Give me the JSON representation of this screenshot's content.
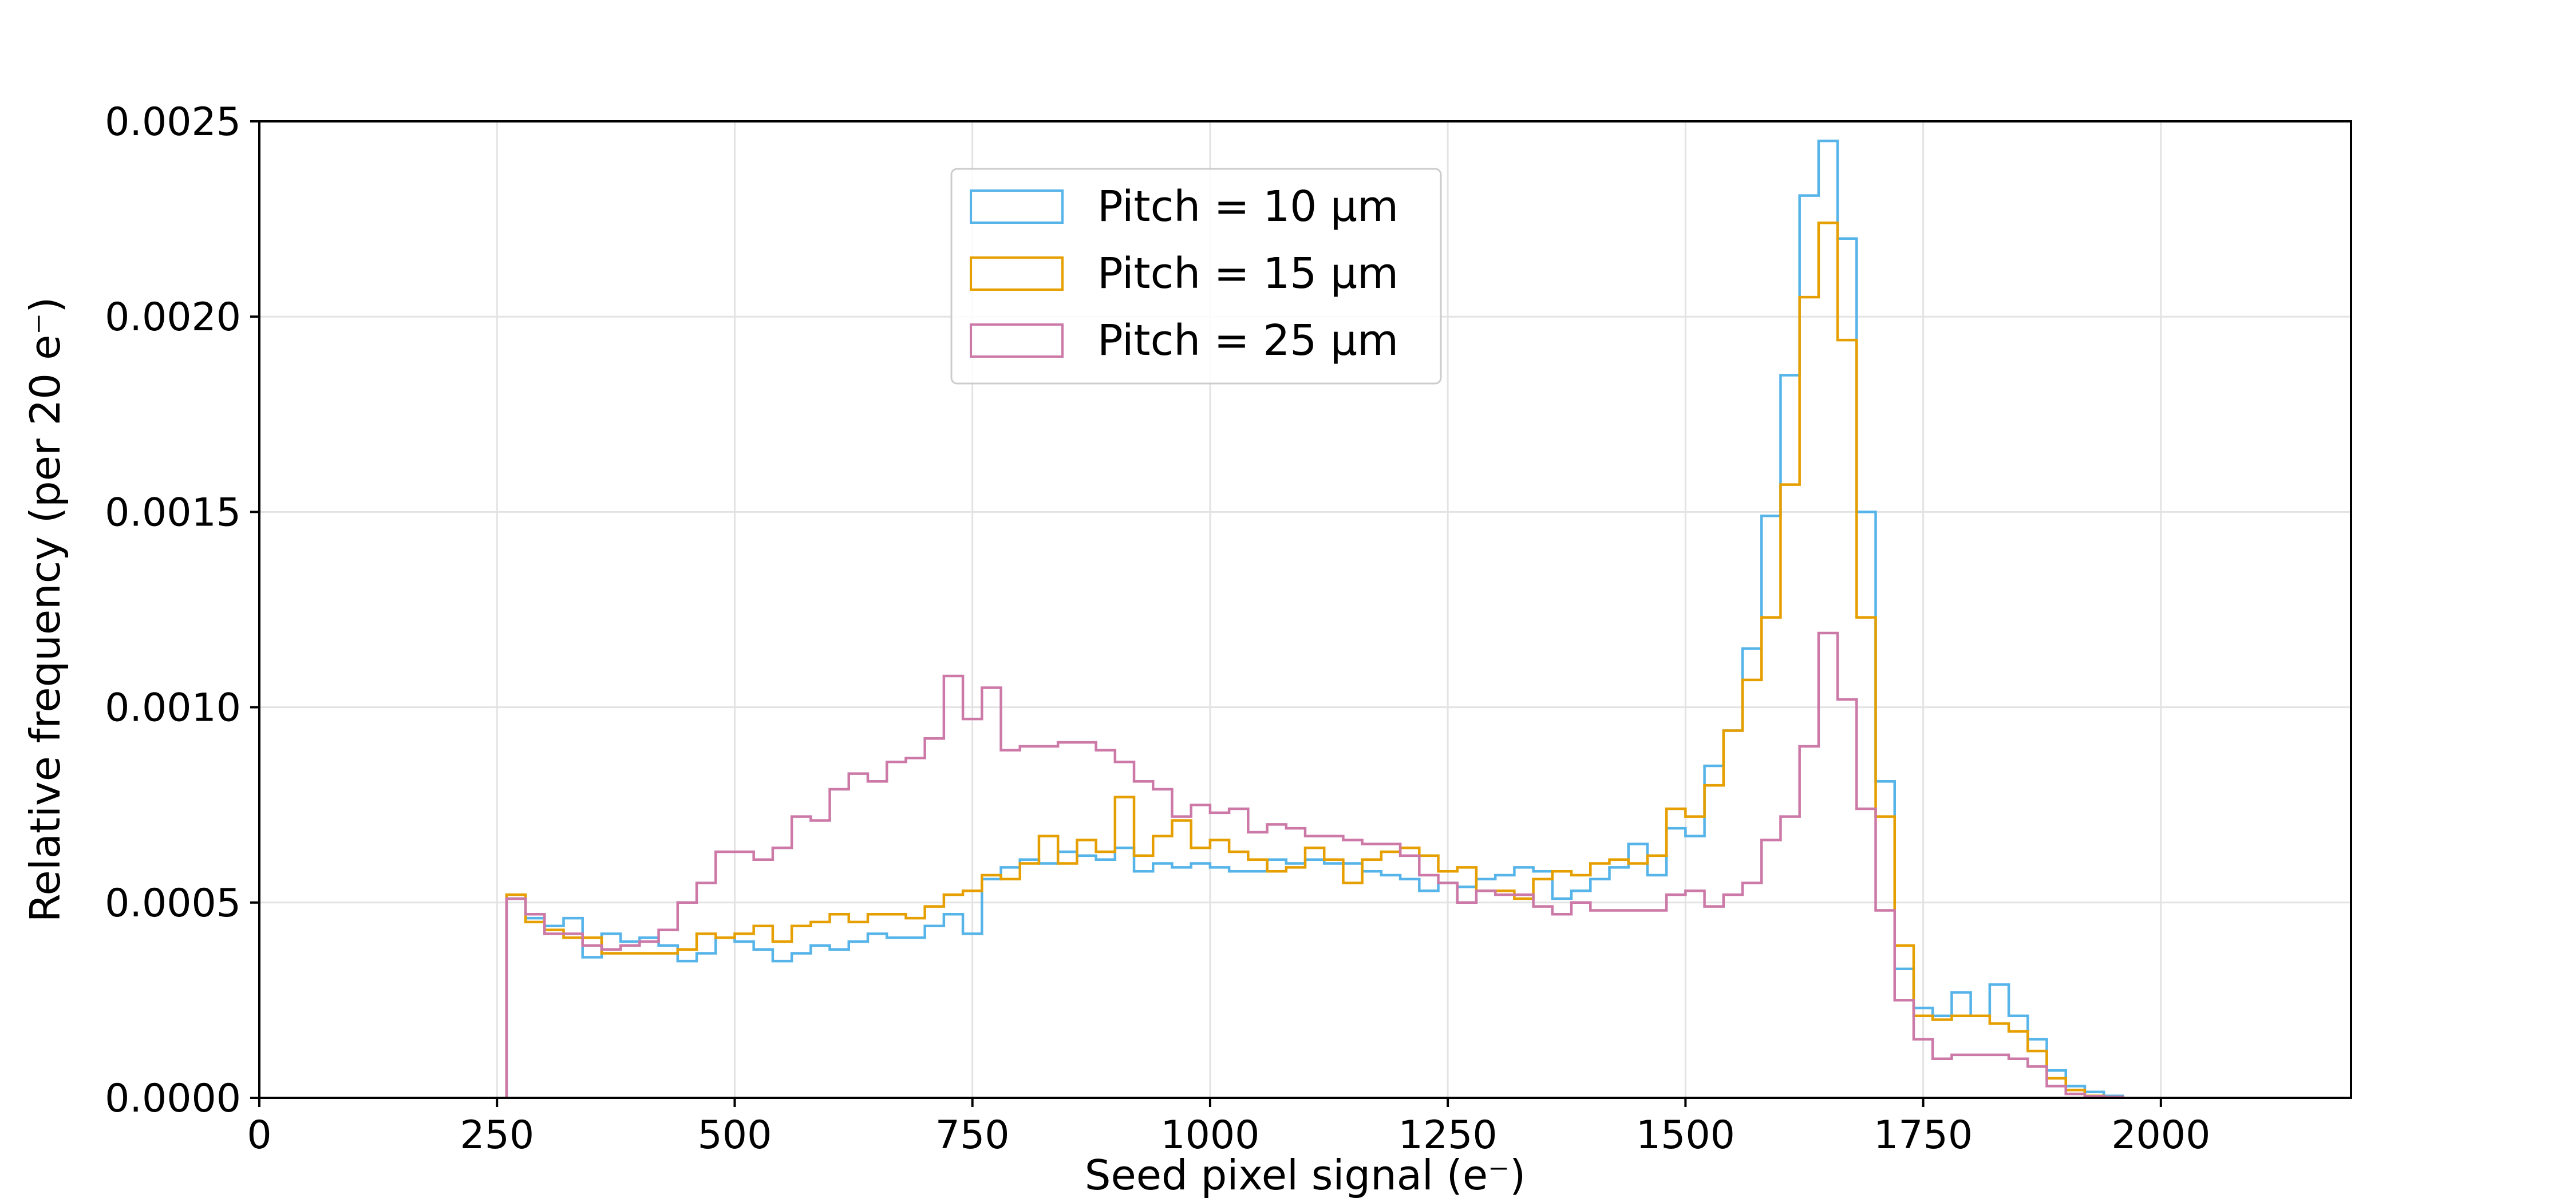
{
  "chart_data": {
    "type": "histogram",
    "xlabel": "Seed pixel signal (e⁻)",
    "ylabel": "Relative frequency (per 20 e⁻)",
    "xlim": [
      0,
      2200
    ],
    "ylim": [
      0,
      0.0025
    ],
    "x_ticks": [
      0,
      250,
      500,
      750,
      1000,
      1250,
      1500,
      1750,
      2000
    ],
    "y_ticks": [
      0,
      0.0005,
      0.001,
      0.0015,
      0.002,
      0.0025
    ],
    "x_tick_labels": [
      "0",
      "250",
      "500",
      "750",
      "1000",
      "1250",
      "1500",
      "1750",
      "2000"
    ],
    "y_tick_labels": [
      "0.0000",
      "0.0005",
      "0.0010",
      "0.0015",
      "0.0020",
      "0.0025"
    ],
    "grid": true,
    "legend_position": "upper-center",
    "bin_start": 260,
    "bin_width": 20,
    "series": [
      {
        "name": "Pitch = 10 μm",
        "color": "#56b4e9",
        "values": [
          0.00051,
          0.00046,
          0.00044,
          0.00046,
          0.00036,
          0.00042,
          0.0004,
          0.00041,
          0.00039,
          0.00035,
          0.00037,
          0.00041,
          0.0004,
          0.00038,
          0.00035,
          0.00037,
          0.00039,
          0.00038,
          0.0004,
          0.00042,
          0.00041,
          0.00041,
          0.00044,
          0.00047,
          0.00042,
          0.00056,
          0.00059,
          0.00061,
          0.0006,
          0.00063,
          0.00062,
          0.00061,
          0.00064,
          0.00058,
          0.0006,
          0.00059,
          0.0006,
          0.00059,
          0.00058,
          0.00058,
          0.00061,
          0.0006,
          0.00061,
          0.0006,
          0.0006,
          0.00058,
          0.00057,
          0.00056,
          0.00053,
          0.00055,
          0.00054,
          0.00056,
          0.00057,
          0.00059,
          0.00058,
          0.00051,
          0.00053,
          0.00056,
          0.00059,
          0.00065,
          0.00057,
          0.00069,
          0.00067,
          0.00085,
          0.00094,
          0.00115,
          0.00149,
          0.00185,
          0.00231,
          0.00245,
          0.0022,
          0.0015,
          0.00081,
          0.00033,
          0.00023,
          0.00021,
          0.00027,
          0.00021,
          0.00029,
          0.00021,
          0.00015,
          7e-05,
          3e-05,
          1.5e-05,
          5e-06
        ]
      },
      {
        "name": "Pitch = 15 μm",
        "color": "#e69f00",
        "values": [
          0.00052,
          0.00045,
          0.00043,
          0.00041,
          0.00041,
          0.00037,
          0.00037,
          0.00037,
          0.00037,
          0.00038,
          0.00042,
          0.00041,
          0.00042,
          0.00044,
          0.0004,
          0.00044,
          0.00045,
          0.00047,
          0.00045,
          0.00047,
          0.00047,
          0.00046,
          0.00049,
          0.00052,
          0.00053,
          0.00057,
          0.00056,
          0.0006,
          0.00067,
          0.0006,
          0.00066,
          0.00063,
          0.00077,
          0.00062,
          0.00067,
          0.00071,
          0.00064,
          0.00066,
          0.00063,
          0.00061,
          0.00058,
          0.00059,
          0.00064,
          0.00061,
          0.00055,
          0.00061,
          0.00063,
          0.00064,
          0.00062,
          0.00058,
          0.00059,
          0.00053,
          0.00053,
          0.00051,
          0.00056,
          0.00058,
          0.00057,
          0.0006,
          0.00061,
          0.0006,
          0.00062,
          0.00074,
          0.00072,
          0.0008,
          0.00094,
          0.00107,
          0.00123,
          0.00157,
          0.00205,
          0.00224,
          0.00194,
          0.00123,
          0.00072,
          0.00039,
          0.00021,
          0.0002,
          0.00021,
          0.00021,
          0.00019,
          0.00017,
          0.00012,
          5e-05,
          2e-05,
          5e-06,
          2e-06
        ]
      },
      {
        "name": "Pitch = 25 μm",
        "color": "#cc79a7",
        "values": [
          0.00051,
          0.00047,
          0.00042,
          0.00042,
          0.00039,
          0.00038,
          0.00039,
          0.0004,
          0.00043,
          0.0005,
          0.00055,
          0.00063,
          0.00063,
          0.00061,
          0.00064,
          0.00072,
          0.00071,
          0.00079,
          0.00083,
          0.00081,
          0.00086,
          0.00087,
          0.00092,
          0.00108,
          0.00097,
          0.00105,
          0.00089,
          0.0009,
          0.0009,
          0.00091,
          0.00091,
          0.00089,
          0.00086,
          0.00081,
          0.00079,
          0.00072,
          0.00075,
          0.00073,
          0.00074,
          0.00068,
          0.0007,
          0.00069,
          0.00067,
          0.00067,
          0.00066,
          0.00065,
          0.00065,
          0.00062,
          0.00057,
          0.00055,
          0.0005,
          0.00053,
          0.00052,
          0.00052,
          0.00049,
          0.00047,
          0.0005,
          0.00048,
          0.00048,
          0.00048,
          0.00048,
          0.00052,
          0.00053,
          0.00049,
          0.00052,
          0.00055,
          0.00066,
          0.00072,
          0.0009,
          0.00119,
          0.00102,
          0.00074,
          0.00048,
          0.00025,
          0.00015,
          0.0001,
          0.00011,
          0.00011,
          0.00011,
          0.0001,
          8e-05,
          3e-05,
          1e-05,
          4e-06,
          2e-06
        ]
      }
    ]
  }
}
